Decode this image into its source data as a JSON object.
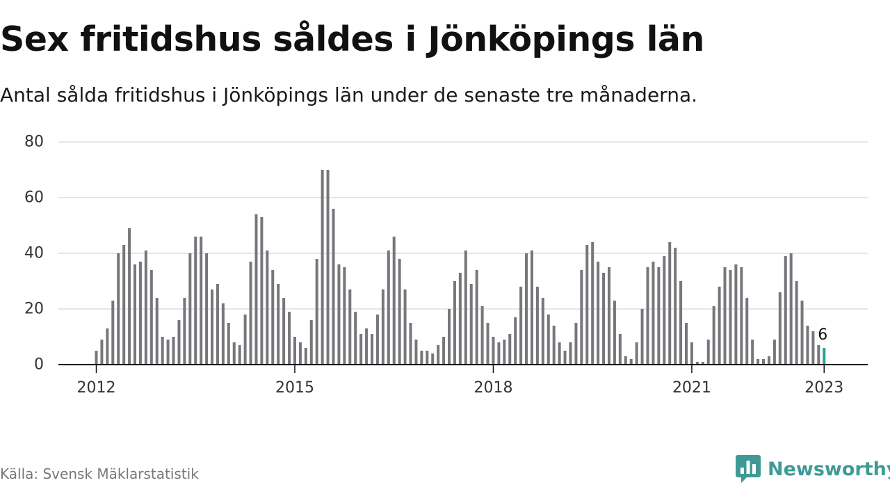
{
  "title": "Sex fritidshus såldes i Jönköpings län",
  "subtitle": "Antal sålda fritidshus i Jönköpings län under de senaste tre månaderna.",
  "source": "Källa: Svensk Mäklarstatistik",
  "brand": "Newsworthy",
  "colors": {
    "bar": "#76767b",
    "highlight": "#2aa198",
    "grid": "#dddddd",
    "axis": "#111111",
    "brand": "#3f9a96"
  },
  "chart_data": {
    "type": "bar",
    "start_period": "2012-01",
    "values": [
      5,
      9,
      13,
      23,
      40,
      43,
      49,
      36,
      37,
      41,
      34,
      24,
      10,
      9,
      10,
      16,
      24,
      40,
      46,
      46,
      40,
      27,
      29,
      22,
      15,
      8,
      7,
      18,
      37,
      54,
      53,
      41,
      34,
      29,
      24,
      19,
      10,
      8,
      6,
      16,
      38,
      70,
      70,
      56,
      36,
      35,
      27,
      19,
      11,
      13,
      11,
      18,
      27,
      41,
      46,
      38,
      27,
      15,
      9,
      5,
      5,
      4,
      7,
      10,
      20,
      30,
      33,
      41,
      29,
      34,
      21,
      15,
      10,
      8,
      9,
      11,
      17,
      28,
      40,
      41,
      28,
      24,
      18,
      14,
      8,
      5,
      8,
      15,
      34,
      43,
      44,
      37,
      33,
      35,
      23,
      11,
      3,
      2,
      8,
      20,
      35,
      37,
      35,
      39,
      44,
      42,
      30,
      15,
      8,
      1,
      1,
      9,
      21,
      28,
      35,
      34,
      36,
      35,
      24,
      9,
      2,
      2,
      3,
      9,
      26,
      39,
      40,
      30,
      23,
      14,
      12,
      7,
      6
    ],
    "highlight_value_label": "6",
    "x_ticks": [
      "2012",
      "2015",
      "2018",
      "2021",
      "2023"
    ],
    "y_ticks": [
      "0",
      "20",
      "40",
      "60",
      "80"
    ],
    "ylim": [
      0,
      80
    ],
    "grid": true,
    "legend": "none"
  }
}
